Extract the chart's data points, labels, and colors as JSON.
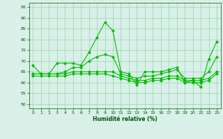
{
  "background_color": "#d8f0e8",
  "grid_color": "#a0d8b8",
  "line_color": "#00bb00",
  "marker_color": "#00bb00",
  "xlabel": "Humidité relative (%)",
  "ylabel_ticks": [
    50,
    55,
    60,
    65,
    70,
    75,
    80,
    85,
    90,
    95
  ],
  "xlim": [
    -0.5,
    23.5
  ],
  "ylim": [
    48,
    97
  ],
  "xticks": [
    0,
    1,
    2,
    3,
    4,
    5,
    6,
    7,
    8,
    9,
    10,
    11,
    12,
    13,
    14,
    15,
    16,
    17,
    18,
    19,
    20,
    21,
    22,
    23
  ],
  "series1": [
    68,
    64,
    64,
    69,
    69,
    69,
    68,
    74,
    81,
    88,
    84,
    65,
    64,
    59,
    65,
    65,
    65,
    66,
    67,
    60,
    61,
    58,
    71,
    79
  ],
  "series2": [
    64,
    64,
    64,
    64,
    65,
    67,
    67,
    70,
    72,
    73,
    72,
    64,
    63,
    62,
    63,
    63,
    64,
    65,
    66,
    62,
    62,
    62,
    65,
    72
  ],
  "series3": [
    64,
    64,
    64,
    64,
    64,
    65,
    65,
    65,
    65,
    65,
    65,
    63,
    62,
    61,
    61,
    62,
    62,
    63,
    63,
    61,
    61,
    61,
    62,
    65
  ],
  "series4": [
    63,
    63,
    63,
    63,
    63,
    64,
    64,
    64,
    64,
    64,
    63,
    62,
    61,
    60,
    60,
    61,
    61,
    62,
    62,
    60,
    60,
    60,
    61,
    64
  ]
}
